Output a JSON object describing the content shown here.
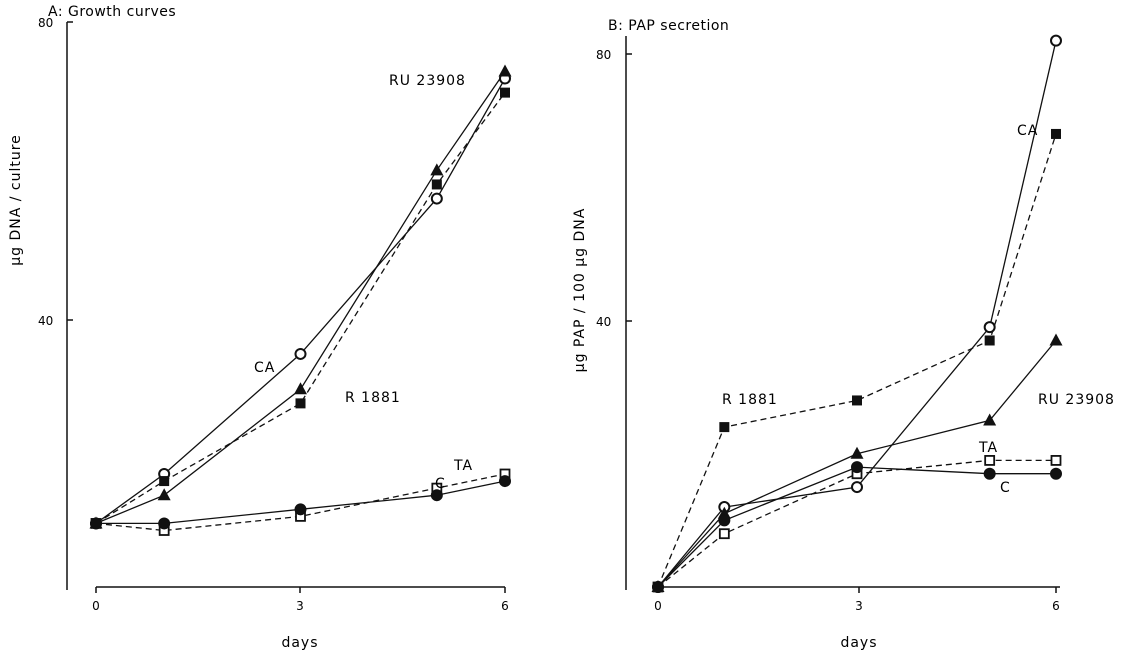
{
  "chart_data": [
    {
      "type": "line",
      "title": "A: Growth curves",
      "xlabel": "days",
      "ylabel": "µg DNA / culture",
      "xlim": [
        0,
        6
      ],
      "ylim": [
        0,
        80
      ],
      "x_ticks": [
        "0",
        "3",
        "6"
      ],
      "y_ticks": [
        "40",
        "80"
      ],
      "series": [
        {
          "name": "CA",
          "marker": "open-circle",
          "dash": "solid",
          "x": [
            0,
            1,
            3,
            5,
            6
          ],
          "y": [
            9,
            16,
            33,
            55,
            72
          ]
        },
        {
          "name": "RU 23908",
          "marker": "filled-triangle",
          "dash": "solid",
          "x": [
            0,
            1,
            3,
            5,
            6
          ],
          "y": [
            9,
            13,
            28,
            59,
            73
          ]
        },
        {
          "name": "R 1881",
          "marker": "filled-square",
          "dash": "dashed",
          "x": [
            0,
            1,
            3,
            5,
            6
          ],
          "y": [
            9,
            15,
            26,
            57,
            70
          ]
        },
        {
          "name": "TA",
          "marker": "open-square",
          "dash": "dashed",
          "x": [
            0,
            1,
            3,
            5,
            6
          ],
          "y": [
            9,
            8,
            10,
            14,
            16
          ]
        },
        {
          "name": "C",
          "marker": "filled-circle",
          "dash": "solid",
          "x": [
            0,
            1,
            3,
            5,
            6
          ],
          "y": [
            9,
            9,
            11,
            13,
            15
          ]
        }
      ]
    },
    {
      "type": "line",
      "title": "B: PAP secretion",
      "xlabel": "days",
      "ylabel": "µg PAP / 100 µg DNA",
      "xlim": [
        0,
        6
      ],
      "ylim": [
        0,
        80
      ],
      "x_ticks": [
        "0",
        "3",
        "6"
      ],
      "y_ticks": [
        "40",
        "80"
      ],
      "series": [
        {
          "name": "CA",
          "marker": "open-circle",
          "dash": "solid",
          "x": [
            0,
            1,
            3,
            5,
            6
          ],
          "y": [
            0,
            12,
            15,
            39,
            82
          ]
        },
        {
          "name": "R 1881",
          "marker": "filled-square",
          "dash": "dashed",
          "x": [
            0,
            1,
            3,
            5,
            6
          ],
          "y": [
            0,
            24,
            28,
            37,
            68
          ]
        },
        {
          "name": "RU 23908",
          "marker": "filled-triangle",
          "dash": "solid",
          "x": [
            0,
            1,
            3,
            5,
            6
          ],
          "y": [
            0,
            11,
            20,
            25,
            37
          ]
        },
        {
          "name": "TA",
          "marker": "open-square",
          "dash": "dashed",
          "x": [
            0,
            1,
            3,
            5,
            6
          ],
          "y": [
            0,
            8,
            17,
            19,
            19
          ]
        },
        {
          "name": "C",
          "marker": "filled-circle",
          "dash": "solid",
          "x": [
            0,
            1,
            3,
            5,
            6
          ],
          "y": [
            0,
            10,
            18,
            17,
            17
          ]
        }
      ]
    }
  ]
}
